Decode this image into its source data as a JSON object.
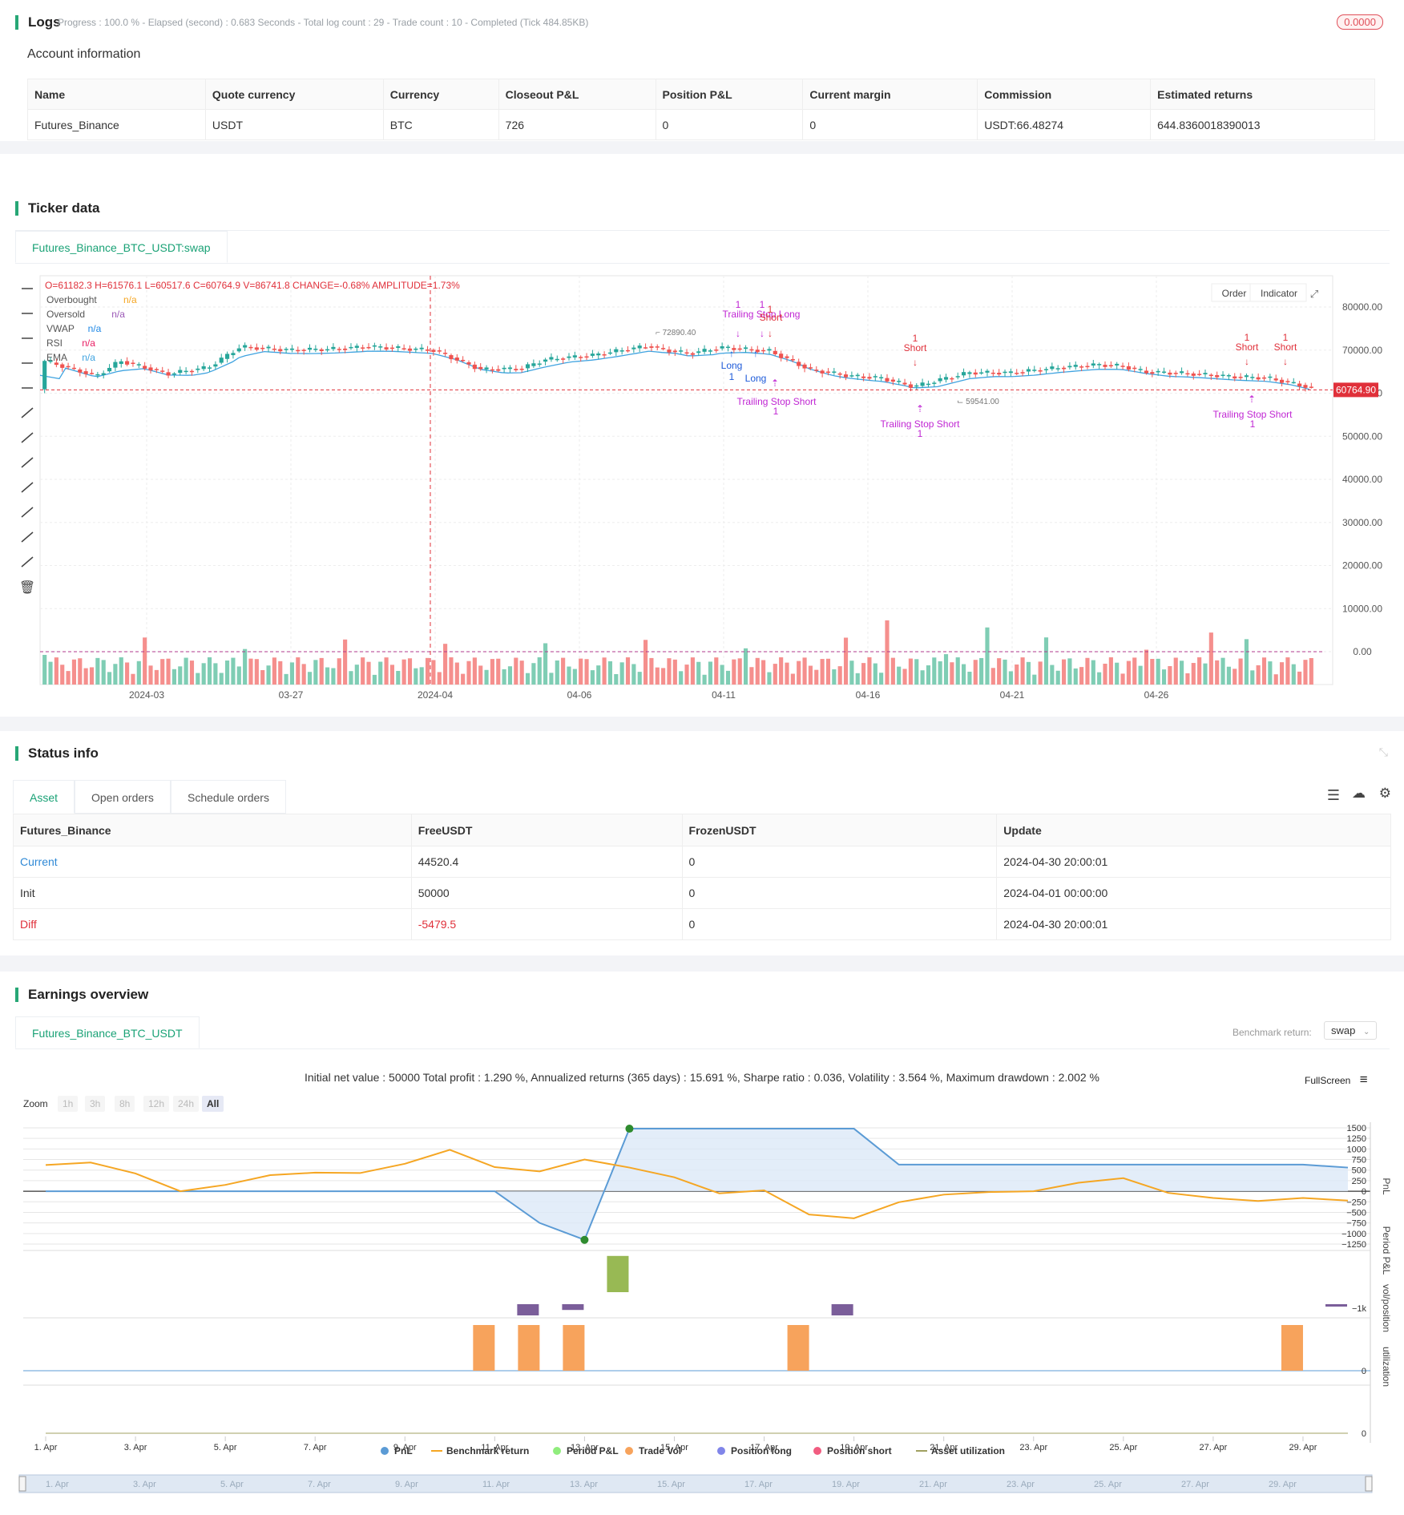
{
  "logs": {
    "title": "Logs",
    "meta": "Progress : 100.0 % - Elapsed (second) : 0.683  Seconds - Total log count : 29 - Trade count : 10 - Completed (Tick 484.85KB)",
    "badge": "0.0000"
  },
  "account": {
    "title": "Account information",
    "headers": [
      "Name",
      "Quote currency",
      "Currency",
      "Closeout P&L",
      "Position P&L",
      "Current margin",
      "Commission",
      "Estimated returns"
    ],
    "row": [
      "Futures_Binance",
      "USDT",
      "BTC",
      "726",
      "0",
      "0",
      "USDT:66.48274",
      "644.8360018390013"
    ]
  },
  "ticker": {
    "title": "Ticker data",
    "tab": "Futures_Binance_BTC_USDT:swap",
    "ohlc": "O=61182.3 H=61576.1 L=60517.6 C=60764.9 V=86741.8 CHANGE=-0.68% AMPLITUDE=1.73%",
    "legend": [
      {
        "name": "Overbought",
        "value": "n/a",
        "color": "#f5a623"
      },
      {
        "name": "Oversold",
        "value": "n/a",
        "color": "#9b59b6"
      },
      {
        "name": "VWAP",
        "value": "n/a",
        "color": "#1e88e5"
      },
      {
        "name": "RSI",
        "value": "n/a",
        "color": "#e91e63"
      },
      {
        "name": "EMA",
        "value": "n/a",
        "color": "#3fa3e0"
      }
    ],
    "buttons": {
      "order": "Order",
      "indicator": "Indicator"
    },
    "price_tag": "60764.90",
    "high_label": "72890.40",
    "low_label": "59541.00",
    "y_ticks": [
      "80000.00",
      "70000.00",
      "60000.00",
      "50000.00",
      "40000.00",
      "30000.00",
      "20000.00",
      "10000.00",
      "0.00"
    ],
    "x_ticks": [
      "2024-03",
      "03-27",
      "2024-04",
      "04-06",
      "04-11",
      "04-16",
      "04-21",
      "04-26"
    ],
    "signals": {
      "trailing_long": "Trailing Stop Long",
      "trailing_short": "Trailing Stop Short",
      "long": "Long",
      "short": "Short",
      "one": "1"
    }
  },
  "status": {
    "title": "Status info",
    "tabs": [
      "Asset",
      "Open orders",
      "Schedule orders"
    ],
    "headers": [
      "Futures_Binance",
      "FreeUSDT",
      "FrozenUSDT",
      "Update"
    ],
    "rows": [
      [
        "Current",
        "44520.4",
        "0",
        "2024-04-30 20:00:01"
      ],
      [
        "Init",
        "50000",
        "0",
        "2024-04-01 00:00:00"
      ],
      [
        "Diff",
        "-5479.5",
        "0",
        "2024-04-30 20:00:01"
      ]
    ]
  },
  "earnings": {
    "title": "Earnings overview",
    "tab": "Futures_Binance_BTC_USDT",
    "benchmark_label": "Benchmark return:",
    "benchmark_value": "swap",
    "summary": "Initial net value : 50000 Total profit : 1.290 %, Annualized returns (365 days) : 15.691 %, Sharpe ratio : 0.036, Volatility : 3.564 %, Maximum drawdown : 2.002 %",
    "fullscreen": "FullScreen",
    "zoom_label": "Zoom",
    "zoom": [
      "1h",
      "3h",
      "8h",
      "12h",
      "24h",
      "All"
    ],
    "pnl_ticks": [
      "1500",
      "1250",
      "1000",
      "750",
      "500",
      "250",
      "0",
      "−250",
      "−500",
      "−750",
      "−1000",
      "−1250"
    ],
    "axis_titles": [
      "PnL",
      "Period P&L",
      "vol/position",
      "utilization"
    ],
    "period_tick": "−1k",
    "vol_tick": "0",
    "util_tick": "0",
    "x_ticks": [
      "1. Apr",
      "3. Apr",
      "5. Apr",
      "7. Apr",
      "9. Apr",
      "11. Apr",
      "13. Apr",
      "15. Apr",
      "17. Apr",
      "19. Apr",
      "21. Apr",
      "23. Apr",
      "25. Apr",
      "27. Apr",
      "29. Apr"
    ],
    "legend": [
      {
        "name": "PnL",
        "color": "#5b9bd5"
      },
      {
        "name": "Benchmark return",
        "color": "#f5a623"
      },
      {
        "name": "Period P&L",
        "color": "#90ed7d"
      },
      {
        "name": "Trade Vol",
        "color": "#f7a35c"
      },
      {
        "name": "Position long",
        "color": "#8085e9"
      },
      {
        "name": "Position short",
        "color": "#f15c80"
      },
      {
        "name": "Asset utilization",
        "color": "#a0a060"
      }
    ]
  },
  "chart_data": {
    "type": "line",
    "x": [
      "1. Apr",
      "2. Apr",
      "3. Apr",
      "4. Apr",
      "5. Apr",
      "6. Apr",
      "7. Apr",
      "8. Apr",
      "9. Apr",
      "10. Apr",
      "11. Apr",
      "12. Apr",
      "13. Apr",
      "14. Apr",
      "15. Apr",
      "16. Apr",
      "17. Apr",
      "18. Apr",
      "19. Apr",
      "20. Apr",
      "21. Apr",
      "22. Apr",
      "23. Apr",
      "24. Apr",
      "25. Apr",
      "26. Apr",
      "27. Apr",
      "28. Apr",
      "29. Apr",
      "30. Apr"
    ],
    "series": [
      {
        "name": "PnL",
        "values": [
          0,
          0,
          0,
          0,
          0,
          0,
          0,
          0,
          0,
          0,
          0,
          -750,
          -1150,
          1480,
          1480,
          1480,
          1480,
          1480,
          1480,
          630,
          630,
          630,
          630,
          630,
          630,
          630,
          630,
          630,
          630,
          560
        ]
      },
      {
        "name": "Benchmark return",
        "values": [
          620,
          680,
          420,
          0,
          150,
          380,
          440,
          430,
          650,
          980,
          570,
          470,
          750,
          560,
          330,
          -50,
          20,
          -550,
          -640,
          -260,
          -80,
          -20,
          0,
          200,
          310,
          -40,
          -160,
          -230,
          -160,
          -220
        ]
      }
    ],
    "period_pnl": {
      "values": [
        {
          "x": "12. Apr",
          "y": -350
        },
        {
          "x": "13. Apr",
          "y": -180
        },
        {
          "x": "14. Apr",
          "y": 1130
        },
        {
          "x": "19. Apr",
          "y": -350
        },
        {
          "x": "30. Apr",
          "y": -50
        }
      ]
    },
    "trade_vol": {
      "x": [
        "11. Apr",
        "12. Apr",
        "13. Apr",
        "18. Apr",
        "29. Apr"
      ],
      "values": [
        1,
        1,
        1,
        1,
        1
      ]
    },
    "ylim": [
      -1250,
      1500
    ]
  }
}
